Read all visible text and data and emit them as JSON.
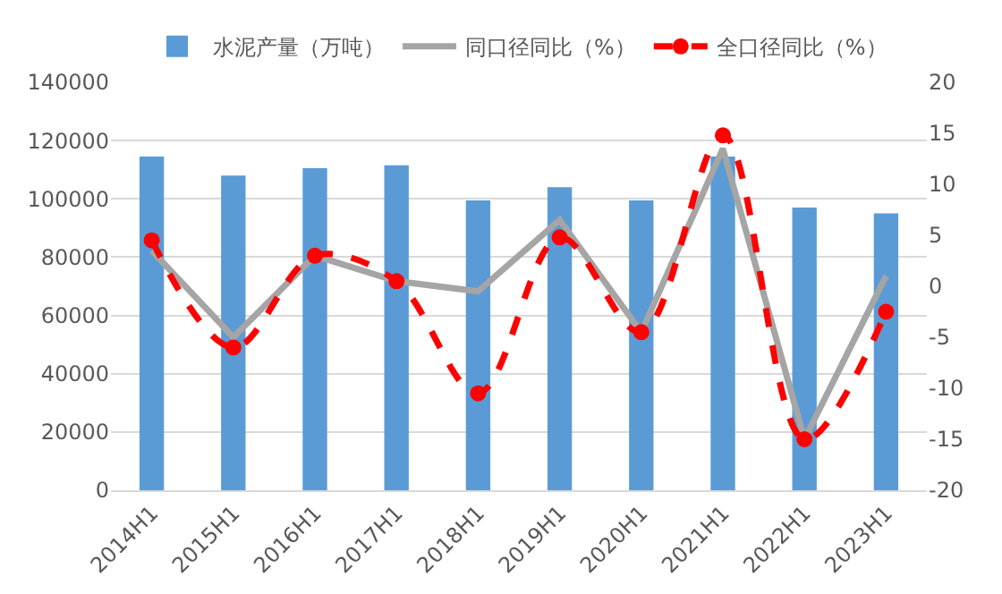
{
  "chart_data": {
    "type": "bar",
    "categories": [
      "2014H1",
      "2015H1",
      "2016H1",
      "2017H1",
      "2018H1",
      "2019H1",
      "2020H1",
      "2021H1",
      "2022H1",
      "2023H1"
    ],
    "series": [
      {
        "name": "水泥产量（万吨）",
        "color": "#5b9bd5",
        "values": [
          114500,
          108000,
          110500,
          111500,
          99500,
          104000,
          99500,
          114500,
          97000,
          95000
        ]
      },
      {
        "name": "同口径同比（%）",
        "type": "line",
        "axis": "y2",
        "color": "#a5a5a5",
        "marker": "none",
        "line_style": "solid",
        "values": [
          3.5,
          -5,
          3,
          0.5,
          -0.5,
          6.5,
          -4.5,
          13.5,
          -15,
          1
        ]
      },
      {
        "name": "全口径同比（%）",
        "type": "line",
        "axis": "y2",
        "color": "#ff0000",
        "marker": "circle",
        "line_style": "dashed",
        "values": [
          4.5,
          -6,
          3,
          0.5,
          -10.5,
          4.8,
          -4.5,
          14.8,
          -15,
          -2.5
        ]
      }
    ],
    "ylim": [
      0,
      140000
    ],
    "yticks": [
      0,
      20000,
      40000,
      60000,
      80000,
      100000,
      120000,
      140000
    ],
    "y2lim": [
      -20,
      20
    ],
    "y2ticks": [
      -20,
      -15,
      -10,
      -5,
      0,
      5,
      10,
      15,
      20
    ],
    "grid": "y",
    "legend": "top"
  }
}
